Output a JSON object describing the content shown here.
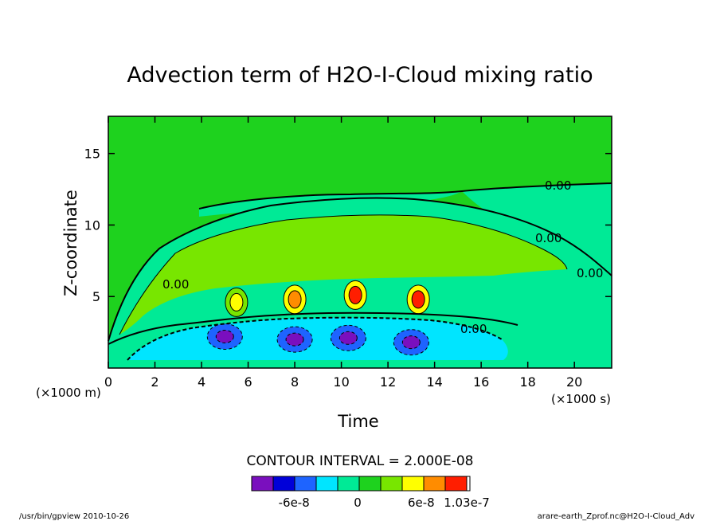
{
  "chart_data": {
    "type": "filled-contour",
    "title": "Advection term of H2O-I-Cloud mixing ratio",
    "xlabel": "Time",
    "ylabel": "Z-coordinate",
    "x_unit": "(×1000 s)",
    "y_unit": "(×1000 m)",
    "xlim": [
      0,
      21.6
    ],
    "ylim": [
      0,
      17.6
    ],
    "x_ticks": [
      0,
      2,
      4,
      6,
      8,
      10,
      12,
      14,
      16,
      18,
      20
    ],
    "y_ticks": [
      5,
      10,
      15
    ],
    "contour_interval_text": "CONTOUR INTERVAL = 2.000E-08",
    "contour_labels": [
      "0.00"
    ],
    "colorbar": {
      "colors": [
        "#7a0fbe",
        "#0000d9",
        "#1e64ff",
        "#00e5ff",
        "#00ea96",
        "#1ed21e",
        "#78e600",
        "#ffff00",
        "#ff8c00",
        "#ff1e00"
      ],
      "tick_labels": [
        "-6e-8",
        "0",
        "6e-8",
        "1.03e-7"
      ],
      "tick_values": [
        -6e-08,
        0,
        6e-08,
        1.03e-07
      ],
      "vmin": -1e-07,
      "vmax": 1.03e-07
    },
    "features": [
      {
        "label": "updraft core",
        "x": 5.5,
        "z": 4.6,
        "value": 6e-08
      },
      {
        "label": "updraft core",
        "x": 8.0,
        "z": 4.8,
        "value": 8e-08
      },
      {
        "label": "updraft core",
        "x": 10.6,
        "z": 5.1,
        "value": 1e-07
      },
      {
        "label": "updraft core",
        "x": 13.3,
        "z": 4.8,
        "value": 1e-07
      },
      {
        "label": "sink region",
        "x": 5.0,
        "z": 2.2,
        "value": -8e-08
      },
      {
        "label": "sink region",
        "x": 8.0,
        "z": 2.0,
        "value": -8e-08
      },
      {
        "label": "sink region",
        "x": 10.3,
        "z": 2.1,
        "value": -8e-08
      },
      {
        "label": "sink region",
        "x": 13.0,
        "z": 1.8,
        "value": -8e-08
      }
    ]
  },
  "footer": {
    "left": "/usr/bin/gpview  2010-10-26",
    "right": "arare-earth_Zprof.nc@H2O-I-Cloud_Adv"
  }
}
